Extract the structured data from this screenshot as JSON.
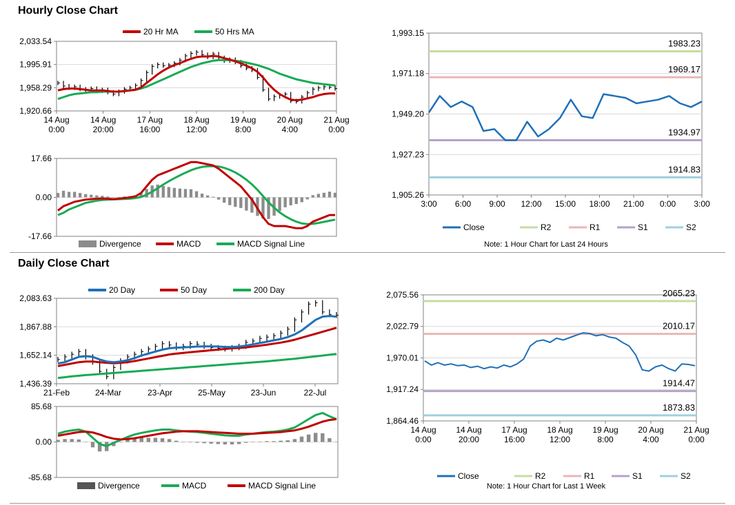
{
  "sections": {
    "hourly_title": "Hourly Close Chart",
    "daily_title": "Daily Close Chart"
  },
  "colors": {
    "red": "#c00000",
    "green": "#1aaa55",
    "blue": "#1f70b8",
    "r2": "#c6dca0",
    "r1": "#eab6b6",
    "s1": "#b3a3c9",
    "s2": "#9fd0de",
    "divergence": "#8c8c8c",
    "grid": "#d9d9d9",
    "axis": "#808080"
  },
  "chart_data": [
    {
      "id": "hourly_price",
      "type": "line",
      "title": "Hourly Close Chart",
      "legend": [
        "20 Hr MA",
        "50 Hrs MA"
      ],
      "ylim": [
        1920.66,
        2033.54
      ],
      "yticks": [
        "2,033.54",
        "1,995.91",
        "1,958.29",
        "1,920.66"
      ],
      "ytick_values": [
        2033.54,
        1995.91,
        1958.29,
        1920.66
      ],
      "xticks": [
        [
          "14 Aug",
          "0:00"
        ],
        [
          "14 Aug",
          "20:00"
        ],
        [
          "17 Aug",
          "16:00"
        ],
        [
          "18 Aug",
          "12:00"
        ],
        [
          "19 Aug",
          "8:00"
        ],
        [
          "20 Aug",
          "4:00"
        ],
        [
          "21 Aug",
          "0:00"
        ]
      ],
      "close": [
        1966,
        1961,
        1958,
        1960,
        1956,
        1954,
        1957,
        1953,
        1955,
        1951,
        1948,
        1952,
        1956,
        1958,
        1962,
        1970,
        1983,
        1993,
        1996,
        1994,
        1995,
        1998,
        2003,
        2010,
        2014,
        2016,
        2012,
        2008,
        2013,
        2007,
        2002,
        2004,
        2000,
        1994,
        1990,
        1987,
        1975,
        1955,
        1940,
        1944,
        1946,
        1948,
        1937,
        1936,
        1943,
        1950,
        1956,
        1958,
        1960,
        1959,
        1957
      ],
      "series": [
        {
          "name": "20 Hr MA",
          "values": [
            1954,
            1956,
            1957,
            1957,
            1956,
            1955,
            1954,
            1954,
            1954,
            1953,
            1952,
            1952,
            1953,
            1954,
            1955,
            1959,
            1966,
            1973,
            1980,
            1986,
            1991,
            1995,
            1998,
            2002,
            2005,
            2008,
            2009,
            2009,
            2010,
            2009,
            2006,
            2004,
            2001,
            1998,
            1994,
            1990,
            1984,
            1975,
            1964,
            1955,
            1948,
            1943,
            1939,
            1938,
            1939,
            1941,
            1943,
            1946,
            1948,
            1949,
            1949
          ]
        },
        {
          "name": "50 Hrs MA",
          "values": [
            1940,
            1943,
            1946,
            1948,
            1949,
            1950,
            1951,
            1951,
            1952,
            1952,
            1952,
            1952,
            1953,
            1954,
            1955,
            1957,
            1960,
            1964,
            1968,
            1972,
            1976,
            1980,
            1984,
            1988,
            1992,
            1995,
            1998,
            2000,
            2002,
            2003,
            2003,
            2003,
            2002,
            2001,
            1999,
            1997,
            1995,
            1992,
            1989,
            1985,
            1981,
            1978,
            1975,
            1972,
            1970,
            1968,
            1966,
            1965,
            1964,
            1963,
            1962
          ]
        }
      ]
    },
    {
      "id": "hourly_macd",
      "type": "line",
      "legend": [
        "Divergence",
        "MACD",
        "MACD Signal Line"
      ],
      "ylim": [
        -17.66,
        17.66
      ],
      "yticks": [
        "17.66",
        "0.00",
        "-17.66"
      ],
      "ytick_values": [
        17.66,
        0,
        -17.66
      ],
      "series": [
        {
          "name": "MACD",
          "values": [
            -6,
            -4,
            -3,
            -2,
            -1.5,
            -1,
            -0.8,
            -0.6,
            -0.5,
            -0.6,
            -0.8,
            -0.6,
            -0.3,
            0,
            0.5,
            2,
            5,
            8,
            10,
            11,
            12,
            13,
            14,
            15,
            16,
            16,
            15.5,
            15,
            14.5,
            13,
            11,
            9,
            7,
            5,
            2,
            -1,
            -5,
            -9,
            -12,
            -13,
            -13,
            -13,
            -13.5,
            -14,
            -14,
            -13,
            -11,
            -10,
            -9,
            -8,
            -8
          ]
        },
        {
          "name": "MACD Signal Line",
          "values": [
            -8,
            -7,
            -5.5,
            -4.5,
            -3.5,
            -2.5,
            -2,
            -1.5,
            -1.2,
            -1,
            -0.9,
            -0.8,
            -0.7,
            -0.6,
            -0.3,
            0.2,
            1.2,
            2.6,
            4.2,
            5.8,
            7.3,
            8.7,
            10,
            11.2,
            12.3,
            13.2,
            13.8,
            14.1,
            14.2,
            14,
            13.4,
            12.5,
            11.3,
            9.8,
            8,
            5.9,
            3.4,
            0.6,
            -2.2,
            -4.7,
            -6.8,
            -8.5,
            -9.9,
            -11,
            -11.8,
            -12.1,
            -12,
            -11.6,
            -11.1,
            -10.6,
            -10.1
          ]
        },
        {
          "name": "Divergence",
          "values": [
            2,
            3,
            2.5,
            2.5,
            2,
            1.5,
            1.2,
            0.9,
            0.7,
            0.4,
            0.1,
            0.2,
            0.4,
            0.6,
            0.8,
            1.8,
            3.8,
            5.4,
            5.8,
            5.2,
            4.7,
            4.3,
            4,
            3.8,
            3.7,
            2.8,
            1.7,
            0.9,
            0.3,
            -1,
            -2.4,
            -3.5,
            -4.3,
            -4.8,
            -6,
            -6.9,
            -8.4,
            -9.6,
            -9.8,
            -8.3,
            -6.2,
            -4.5,
            -3.6,
            -3,
            -2.2,
            -0.9,
            1,
            1.6,
            2.1,
            2.6,
            2.1
          ]
        }
      ]
    },
    {
      "id": "hourly_levels",
      "type": "line",
      "ylim": [
        1905.26,
        1993.15
      ],
      "yticks": [
        "1,993.15",
        "1,971.18",
        "1,949.20",
        "1,927.23",
        "1,905.26"
      ],
      "ytick_values": [
        1993.15,
        1971.18,
        1949.2,
        1927.23,
        1905.26
      ],
      "xticks": [
        "3:00",
        "6:00",
        "9:00",
        "12:00",
        "15:00",
        "18:00",
        "21:00",
        "0:00",
        "3:00"
      ],
      "close": [
        1950,
        1959,
        1953,
        1956,
        1953,
        1940,
        1941,
        1935,
        1935,
        1945,
        1937,
        1941,
        1947,
        1957,
        1948,
        1947,
        1960,
        1959,
        1958,
        1955,
        1956,
        1957,
        1959,
        1955,
        1953,
        1956
      ],
      "levels": [
        {
          "name": "R2",
          "value": 1983.23,
          "label": "1983.23"
        },
        {
          "name": "R1",
          "value": 1969.17,
          "label": "1969.17"
        },
        {
          "name": "S1",
          "value": 1934.97,
          "label": "1934.97"
        },
        {
          "name": "S2",
          "value": 1914.83,
          "label": "1914.83"
        }
      ],
      "legend": [
        "Close",
        "R2",
        "R1",
        "S1",
        "S2"
      ],
      "note": "Note: 1 Hour Chart for Last 24 Hours"
    },
    {
      "id": "daily_price",
      "type": "line",
      "title": "Daily Close Chart",
      "legend": [
        "20 Day",
        "50 Day",
        "200 Day"
      ],
      "ylim": [
        1436.39,
        2083.63
      ],
      "yticks": [
        "2,083.63",
        "1,867.88",
        "1,652.14",
        "1,436.39"
      ],
      "ytick_values": [
        2083.63,
        1867.88,
        1652.14,
        1436.39
      ],
      "xticks": [
        "21-Feb",
        "24-Mar",
        "23-Apr",
        "25-May",
        "23-Jun",
        "22-Jul"
      ],
      "close": [
        1620,
        1640,
        1660,
        1680,
        1640,
        1600,
        1530,
        1490,
        1560,
        1610,
        1640,
        1660,
        1680,
        1700,
        1720,
        1740,
        1730,
        1710,
        1720,
        1740,
        1735,
        1720,
        1710,
        1705,
        1700,
        1710,
        1720,
        1750,
        1760,
        1780,
        1790,
        1800,
        1820,
        1850,
        1920,
        1980,
        2040,
        2050,
        1980,
        1960,
        1955
      ],
      "series": [
        {
          "name": "20 Day",
          "values": [
            1590,
            1600,
            1620,
            1640,
            1645,
            1640,
            1620,
            1605,
            1600,
            1605,
            1615,
            1630,
            1650,
            1665,
            1680,
            1695,
            1705,
            1710,
            1712,
            1715,
            1718,
            1720,
            1720,
            1718,
            1715,
            1715,
            1718,
            1725,
            1735,
            1745,
            1755,
            1765,
            1775,
            1790,
            1810,
            1840,
            1880,
            1920,
            1945,
            1950,
            1945
          ]
        },
        {
          "name": "50 Day",
          "values": [
            1570,
            1580,
            1590,
            1600,
            1605,
            1605,
            1600,
            1595,
            1592,
            1595,
            1600,
            1608,
            1618,
            1628,
            1638,
            1648,
            1658,
            1665,
            1670,
            1675,
            1680,
            1685,
            1690,
            1695,
            1700,
            1705,
            1708,
            1712,
            1718,
            1725,
            1732,
            1740,
            1748,
            1758,
            1770,
            1785,
            1800,
            1815,
            1830,
            1845,
            1860
          ]
        },
        {
          "name": "200 Day",
          "values": [
            1480,
            1486,
            1492,
            1497,
            1502,
            1506,
            1510,
            1514,
            1518,
            1522,
            1526,
            1530,
            1534,
            1538,
            1542,
            1546,
            1550,
            1554,
            1558,
            1562,
            1566,
            1570,
            1574,
            1578,
            1582,
            1586,
            1590,
            1594,
            1598,
            1602,
            1606,
            1611,
            1616,
            1621,
            1626,
            1632,
            1638,
            1644,
            1650,
            1656,
            1662
          ]
        }
      ]
    },
    {
      "id": "daily_macd",
      "type": "line",
      "legend": [
        "Divergence",
        "MACD",
        "MACD Signal Line"
      ],
      "ylim": [
        -85.68,
        85.68
      ],
      "yticks": [
        "85.68",
        "0.00",
        "-85.68"
      ],
      "ytick_values": [
        85.68,
        0,
        -85.68
      ],
      "series": [
        {
          "name": "MACD",
          "values": [
            20,
            25,
            28,
            30,
            25,
            10,
            -5,
            -10,
            -2,
            5,
            12,
            18,
            22,
            25,
            28,
            30,
            30,
            28,
            26,
            25,
            24,
            22,
            20,
            18,
            16,
            15,
            15,
            18,
            20,
            22,
            24,
            25,
            27,
            30,
            35,
            45,
            55,
            65,
            70,
            62,
            55
          ]
        },
        {
          "name": "MACD Signal Line",
          "values": [
            15,
            18,
            21,
            24,
            25,
            23,
            18,
            12,
            8,
            6,
            7,
            9,
            12,
            15,
            18,
            21,
            23,
            25,
            26,
            26,
            26,
            25,
            24,
            23,
            22,
            21,
            20,
            20,
            20,
            21,
            22,
            23,
            24,
            26,
            28,
            32,
            37,
            43,
            49,
            53,
            55
          ]
        },
        {
          "name": "Divergence",
          "values": [
            5,
            7,
            7,
            6,
            0,
            -13,
            -23,
            -22,
            -10,
            -1,
            5,
            9,
            10,
            10,
            10,
            9,
            7,
            3,
            0,
            -1,
            -2,
            -3,
            -4,
            -5,
            -6,
            -6,
            -5,
            -2,
            0,
            1,
            2,
            2,
            3,
            4,
            7,
            13,
            18,
            22,
            21,
            9,
            0
          ]
        }
      ]
    },
    {
      "id": "daily_levels",
      "type": "line",
      "ylim": [
        1864.46,
        2075.56
      ],
      "yticks": [
        "2,075.56",
        "2,022.79",
        "1,970.01",
        "1,917.24",
        "1,864.46"
      ],
      "ytick_values": [
        2075.56,
        2022.79,
        1970.01,
        1917.24,
        1864.46
      ],
      "xticks": [
        [
          "14 Aug",
          "0:00"
        ],
        [
          "14 Aug",
          "20:00"
        ],
        [
          "17 Aug",
          "16:00"
        ],
        [
          "18 Aug",
          "12:00"
        ],
        [
          "19 Aug",
          "8:00"
        ],
        [
          "20 Aug",
          "4:00"
        ],
        [
          "21 Aug",
          "0:00"
        ]
      ],
      "close": [
        1965,
        1958,
        1962,
        1958,
        1960,
        1957,
        1958,
        1954,
        1956,
        1952,
        1955,
        1953,
        1958,
        1955,
        1960,
        1968,
        1990,
        1998,
        2000,
        1996,
        2003,
        2000,
        2004,
        2008,
        2012,
        2011,
        2007,
        2009,
        2005,
        2003,
        1996,
        1990,
        1975,
        1950,
        1948,
        1955,
        1958,
        1952,
        1948,
        1960,
        1959,
        1957
      ],
      "levels": [
        {
          "name": "R2",
          "value": 2065.23,
          "label": "2065.23"
        },
        {
          "name": "R1",
          "value": 2010.17,
          "label": "2010.17"
        },
        {
          "name": "S1",
          "value": 1914.47,
          "label": "1914.47"
        },
        {
          "name": "S2",
          "value": 1873.83,
          "label": "1873.83"
        }
      ],
      "legend": [
        "Close",
        "R2",
        "R1",
        "S1",
        "S2"
      ],
      "note": "Note: 1 Hour Chart for Last 1 Week"
    }
  ]
}
